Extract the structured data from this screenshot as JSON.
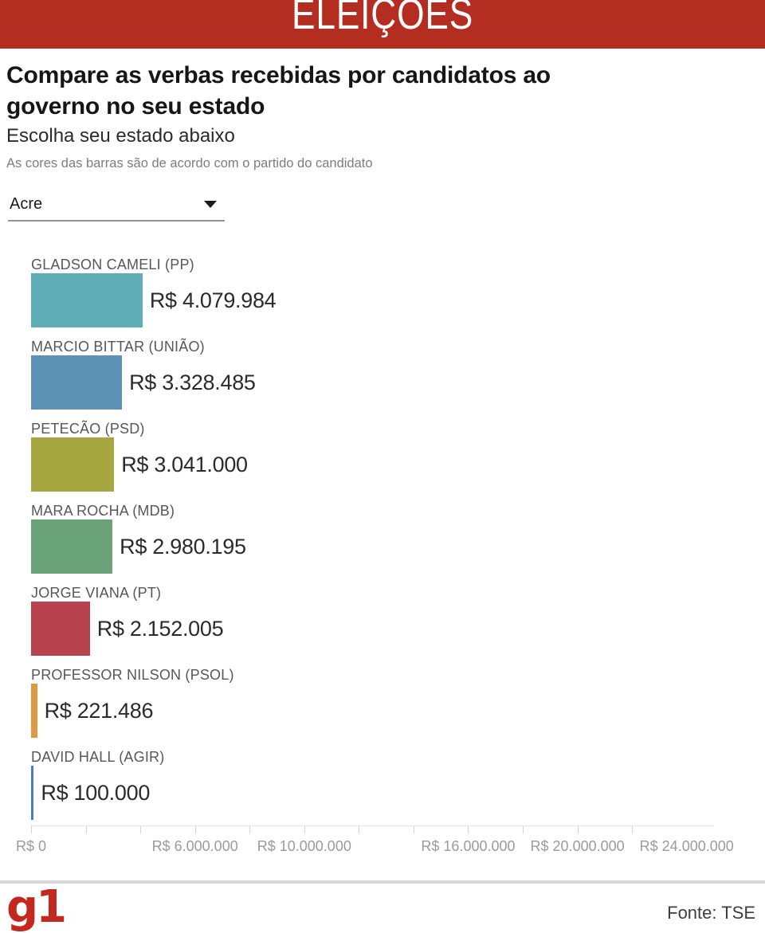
{
  "header": {
    "title": "ELEIÇÕES",
    "background_color": "#b32d20"
  },
  "intro": {
    "title": "Compare as verbas recebidas por candidatos ao governo no seu estado",
    "title_lines": [
      "Compare as verbas recebidas por candidatos ao",
      "governo no seu estado"
    ],
    "subtitle": "Escolha seu estado abaixo",
    "note": "As cores das barras são de acordo com o partido do candidato"
  },
  "state_selector": {
    "selected": "Acre"
  },
  "chart_data": {
    "type": "bar",
    "orientation": "horizontal",
    "title": "Verbas recebidas por candidatos ao governo - Acre",
    "unit": "R$",
    "axis_max": 25000000,
    "tick_step": 2000000,
    "grid": false,
    "bars": [
      {
        "label": "GLADSON CAMELI (PP)",
        "value": 4079984,
        "value_label": "R$ 4.079.984",
        "color": "#5fadb4"
      },
      {
        "label": "MARCIO BITTAR (UNIÃO)",
        "value": 3328485,
        "value_label": "R$ 3.328.485",
        "color": "#5c92b4"
      },
      {
        "label": "PETECÃO (PSD)",
        "value": 3041000,
        "value_label": "R$ 3.041.000",
        "color": "#a7a741"
      },
      {
        "label": "MARA ROCHA (MDB)",
        "value": 2980195,
        "value_label": "R$ 2.980.195",
        "color": "#6ba378"
      },
      {
        "label": "JORGE VIANA (PT)",
        "value": 2152005,
        "value_label": "R$ 2.152.005",
        "color": "#b8414e"
      },
      {
        "label": "PROFESSOR NILSON (PSOL)",
        "value": 221486,
        "value_label": "R$ 221.486",
        "color": "#e0993f"
      },
      {
        "label": "DAVID HALL (AGIR)",
        "value": 100000,
        "value_label": "R$ 100.000",
        "color": "#4b7dc0"
      }
    ],
    "x_axis_labels": [
      {
        "value": 0,
        "label": "R$ 0"
      },
      {
        "value": 6000000,
        "label": "R$ 6.000.000"
      },
      {
        "value": 10000000,
        "label": "R$ 10.000.000"
      },
      {
        "value": 16000000,
        "label": "R$ 16.000.000"
      },
      {
        "value": 20000000,
        "label": "R$ 20.000.000"
      },
      {
        "value": 24000000,
        "label": "R$ 24.000.000"
      }
    ]
  },
  "footer": {
    "logo": "g1",
    "source": "Fonte: TSE"
  }
}
